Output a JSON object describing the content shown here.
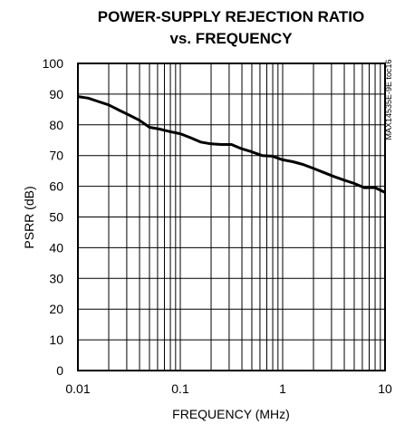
{
  "chart_data": {
    "type": "line",
    "title_line1": "POWER-SUPPLY REJECTION RATIO",
    "title_line2": "vs. FREQUENCY",
    "xlabel": "FREQUENCY (MHz)",
    "ylabel": "PSRR (dB)",
    "x_scale": "log",
    "xlim": [
      0.01,
      10
    ],
    "ylim": [
      0,
      100
    ],
    "x_ticks": [
      0.01,
      0.1,
      1,
      10
    ],
    "x_tick_labels": [
      "0.01",
      "0.1",
      "1",
      "10"
    ],
    "y_ticks": [
      0,
      10,
      20,
      30,
      40,
      50,
      60,
      70,
      80,
      90,
      100
    ],
    "y_tick_labels": [
      "0",
      "10",
      "20",
      "30",
      "40",
      "50",
      "60",
      "70",
      "80",
      "90",
      "100"
    ],
    "grid": true,
    "series": [
      {
        "x": [
          0.01,
          0.0126,
          0.0158,
          0.02,
          0.0251,
          0.0316,
          0.0398,
          0.05,
          0.063,
          0.0794,
          0.1,
          0.126,
          0.158,
          0.2,
          0.251,
          0.316,
          0.398,
          0.5,
          0.63,
          0.794,
          1,
          1.26,
          1.58,
          2,
          2.51,
          3.16,
          3.98,
          5,
          6.3,
          7.94,
          10
        ],
        "y": [
          89.2,
          88.7,
          87.6,
          86.5,
          84.8,
          83.2,
          81.5,
          79.2,
          78.6,
          77.8,
          77.1,
          75.8,
          74.4,
          73.8,
          73.6,
          73.6,
          72.2,
          71.2,
          70.0,
          69.8,
          68.6,
          68.0,
          67.1,
          65.8,
          64.5,
          63.2,
          62.0,
          60.9,
          59.5,
          59.6,
          58.0
        ]
      }
    ],
    "side_annotation": "MAX14535E-9E toc16"
  }
}
